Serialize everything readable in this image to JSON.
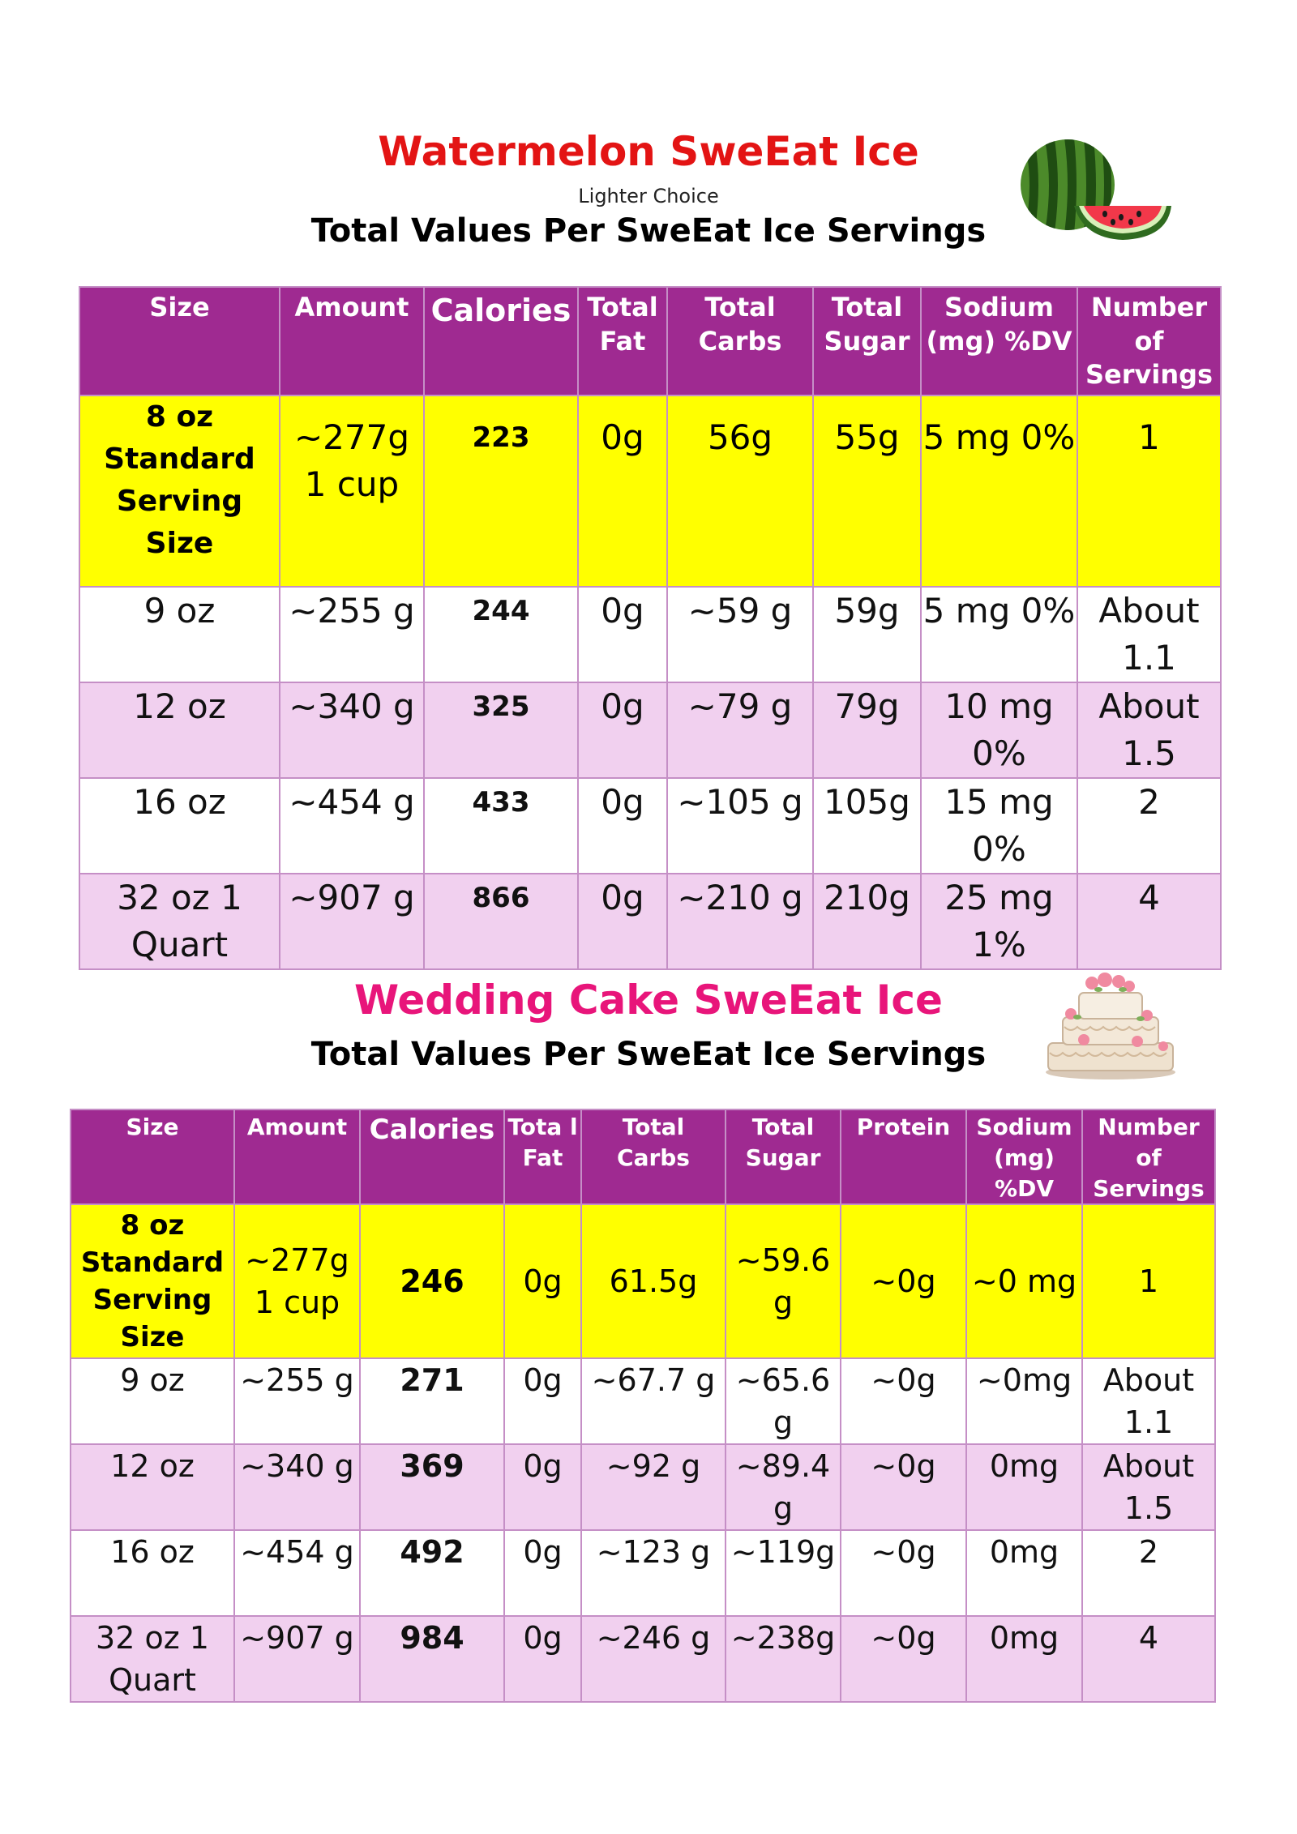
{
  "watermelon": {
    "title": "Watermelon SweEat Ice",
    "subtitle": "Lighter Choice",
    "heading": "Total Values Per SweEat Ice Servings",
    "image_icon": "watermelon-icon",
    "headers": [
      "Size",
      "Amount",
      "Calories",
      "Total Fat",
      "Total Carbs",
      "Total Sugar",
      "Sodium (mg) %DV",
      "Number of Servings"
    ],
    "rows": [
      {
        "size": "8 oz Standard Serving Size",
        "amount": "~277g 1 cup",
        "calories": "223",
        "fat": "0g",
        "carbs": "56g",
        "sugar": "55g",
        "sodium": "5 mg 0%",
        "servings": "1"
      },
      {
        "size": "9 oz",
        "amount": "~255 g",
        "calories": "244",
        "fat": "0g",
        "carbs": "~59 g",
        "sugar": "59g",
        "sodium": "5 mg 0%",
        "servings": "About 1.1"
      },
      {
        "size": "12 oz",
        "amount": "~340 g",
        "calories": "325",
        "fat": "0g",
        "carbs": "~79 g",
        "sugar": "79g",
        "sodium": "10 mg 0%",
        "servings": "About 1.5"
      },
      {
        "size": "16 oz",
        "amount": "~454 g",
        "calories": "433",
        "fat": "0g",
        "carbs": "~105 g",
        "sugar": "105g",
        "sodium": "15 mg 0%",
        "servings": "2"
      },
      {
        "size": "32 oz 1 Quart",
        "amount": "~907 g",
        "calories": "866",
        "fat": "0g",
        "carbs": "~210 g",
        "sugar": "210g",
        "sodium": "25 mg 1%",
        "servings": "4"
      }
    ]
  },
  "wedding_cake": {
    "title": "Wedding Cake SweEat Ice",
    "heading": "Total Values Per SweEat Ice Servings",
    "image_icon": "wedding-cake-icon",
    "headers": [
      "Size",
      "Amount",
      "Calories",
      "Tota l Fat",
      "Total Carbs",
      "Total Sugar",
      "Protein",
      "Sodium (mg) %DV",
      "Number of Servings"
    ],
    "rows": [
      {
        "size": "8 oz Standard Serving Size",
        "amount": "~277g 1 cup",
        "calories": "246",
        "fat": "0g",
        "carbs": "61.5g",
        "sugar": "~59.6 g",
        "protein": "~0g",
        "sodium": "~0 mg",
        "servings": "1"
      },
      {
        "size": "9 oz",
        "amount": "~255 g",
        "calories": "271",
        "fat": "0g",
        "carbs": "~67.7 g",
        "sugar": "~65.6 g",
        "protein": "~0g",
        "sodium": "~0mg",
        "servings": "About 1.1"
      },
      {
        "size": "12 oz",
        "amount": "~340 g",
        "calories": "369",
        "fat": "0g",
        "carbs": "~92 g",
        "sugar": "~89.4 g",
        "protein": "~0g",
        "sodium": "0mg",
        "servings": "About 1.5"
      },
      {
        "size": "16 oz",
        "amount": "~454 g",
        "calories": "492",
        "fat": "0g",
        "carbs": "~123 g",
        "sugar": "~119g",
        "protein": "~0g",
        "sodium": "0mg",
        "servings": "2"
      },
      {
        "size": "32 oz 1 Quart",
        "amount": "~907 g",
        "calories": "984",
        "fat": "0g",
        "carbs": "~246 g",
        "sugar": "~238g",
        "protein": "~0g",
        "sodium": "0mg",
        "servings": "4"
      }
    ]
  }
}
